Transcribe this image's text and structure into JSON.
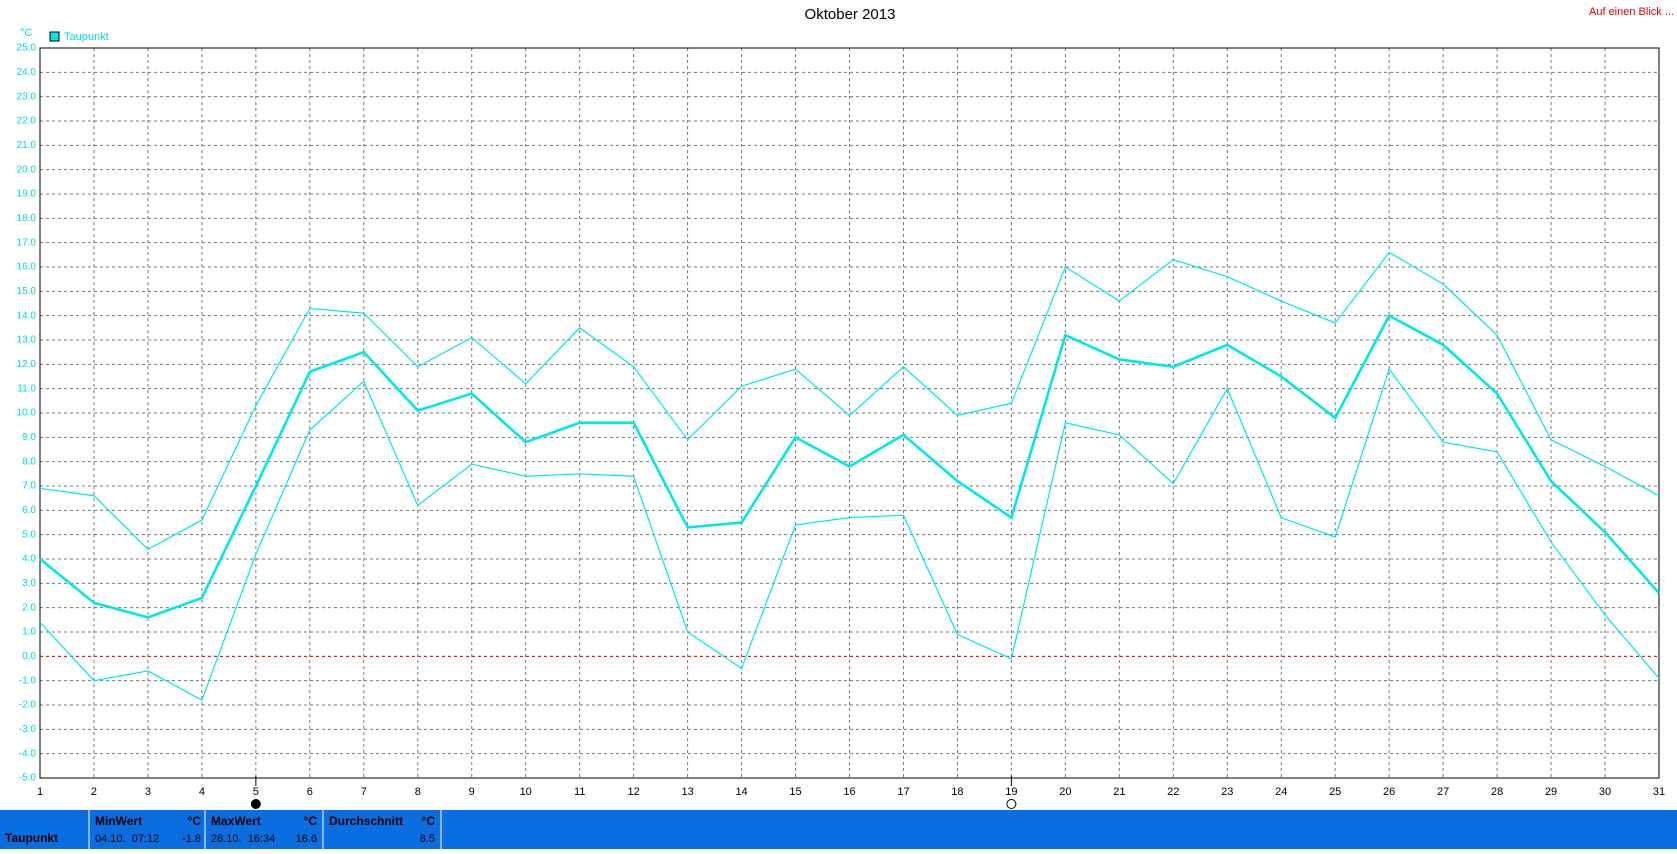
{
  "chart_data": {
    "type": "line",
    "title": "Oktober 2013",
    "y_unit": "°C",
    "x": [
      1,
      2,
      3,
      4,
      5,
      6,
      7,
      8,
      9,
      10,
      11,
      12,
      13,
      14,
      15,
      16,
      17,
      18,
      19,
      20,
      21,
      22,
      23,
      24,
      25,
      26,
      27,
      28,
      29,
      30,
      31
    ],
    "series": [
      {
        "name": "Taupunkt",
        "color": "#00e8e8",
        "values": [
          4.0,
          2.2,
          1.6,
          2.4,
          7.0,
          11.7,
          12.5,
          10.1,
          10.8,
          8.8,
          9.6,
          9.6,
          5.3,
          5.5,
          9.0,
          7.8,
          9.1,
          7.2,
          5.7,
          13.2,
          12.2,
          11.9,
          12.8,
          11.5,
          9.8,
          14.0,
          12.8,
          10.8,
          7.2,
          5.1,
          2.6
        ]
      },
      {
        "color": "#00e8e8",
        "values": [
          6.9,
          6.6,
          4.4,
          5.6,
          10.3,
          14.3,
          14.1,
          11.9,
          13.1,
          11.2,
          13.5,
          11.9,
          8.9,
          11.1,
          11.8,
          9.9,
          11.9,
          9.9,
          10.4,
          16.0,
          14.6,
          16.3,
          15.6,
          14.6,
          13.7,
          16.6,
          15.3,
          13.2,
          8.9,
          7.8,
          6.6
        ]
      },
      {
        "color": "#00e8e8",
        "values": [
          1.4,
          -1.0,
          -0.6,
          -1.8,
          4.2,
          9.3,
          11.3,
          6.2,
          7.9,
          7.4,
          7.5,
          7.4,
          1.0,
          -0.5,
          5.4,
          5.7,
          5.8,
          0.9,
          -0.1,
          9.6,
          9.1,
          7.1,
          11.0,
          5.7,
          4.9,
          11.8,
          8.8,
          8.4,
          4.7,
          1.7,
          -0.9
        ]
      }
    ],
    "xlim": [
      1,
      31
    ],
    "xticks": [
      1,
      2,
      3,
      4,
      5,
      6,
      7,
      8,
      9,
      10,
      11,
      12,
      13,
      14,
      15,
      16,
      17,
      18,
      19,
      20,
      21,
      22,
      23,
      24,
      25,
      26,
      27,
      28,
      29,
      30,
      31
    ],
    "ylim": [
      -5,
      25
    ],
    "yticks": [
      {
        "value": 25,
        "label": "25.0"
      },
      {
        "value": 24,
        "label": "24.0"
      },
      {
        "value": 23,
        "label": "23.0"
      },
      {
        "value": 22,
        "label": "22.0"
      },
      {
        "value": 21,
        "label": "21.0"
      },
      {
        "value": 20,
        "label": "20.0"
      },
      {
        "value": 19,
        "label": "19.0"
      },
      {
        "value": 18,
        "label": "18.0"
      },
      {
        "value": 17,
        "label": "17.0"
      },
      {
        "value": 16,
        "label": "16.0"
      },
      {
        "value": 15,
        "label": "15.0"
      },
      {
        "value": 14,
        "label": "14.0"
      },
      {
        "value": 13,
        "label": "13.0"
      },
      {
        "value": 12,
        "label": "12.0"
      },
      {
        "value": 11,
        "label": "11.0"
      },
      {
        "value": 10,
        "label": "10.0"
      },
      {
        "value": 9,
        "label": "9.0"
      },
      {
        "value": 8,
        "label": "8.0"
      },
      {
        "value": 7,
        "label": "7.0"
      },
      {
        "value": 6,
        "label": "6.0"
      },
      {
        "value": 5,
        "label": "5.0"
      },
      {
        "value": 4,
        "label": "4.0"
      },
      {
        "value": 3,
        "label": "3.0"
      },
      {
        "value": 2,
        "label": "2.0"
      },
      {
        "value": 1,
        "label": "1.0"
      },
      {
        "value": 0,
        "label": "0.0"
      },
      {
        "value": -1,
        "label": "-1.0"
      },
      {
        "value": -2,
        "label": "-2.0"
      },
      {
        "value": -3,
        "label": "-3.0"
      },
      {
        "value": -4,
        "label": "-4.0"
      },
      {
        "value": -5,
        "label": "-5.0"
      }
    ],
    "grid": true,
    "reference_line": {
      "value": 0,
      "color": "#ff0000"
    },
    "moon_phases": [
      {
        "x": 5,
        "phase": "new"
      },
      {
        "x": 19,
        "phase": "full"
      }
    ]
  },
  "link": "Auf einen Blick ...",
  "summary": {
    "row_label": "Taupunkt",
    "blocks": [
      {
        "title": "MinWert",
        "unit": "°C",
        "time": "04.10.  07:12",
        "value": -1.8
      },
      {
        "title": "MaxWert",
        "unit": "°C",
        "time": "26.10.  16:34",
        "value": 16.6
      },
      {
        "title": "Durchschnitt",
        "unit": "°C",
        "value": 8.5
      }
    ]
  }
}
